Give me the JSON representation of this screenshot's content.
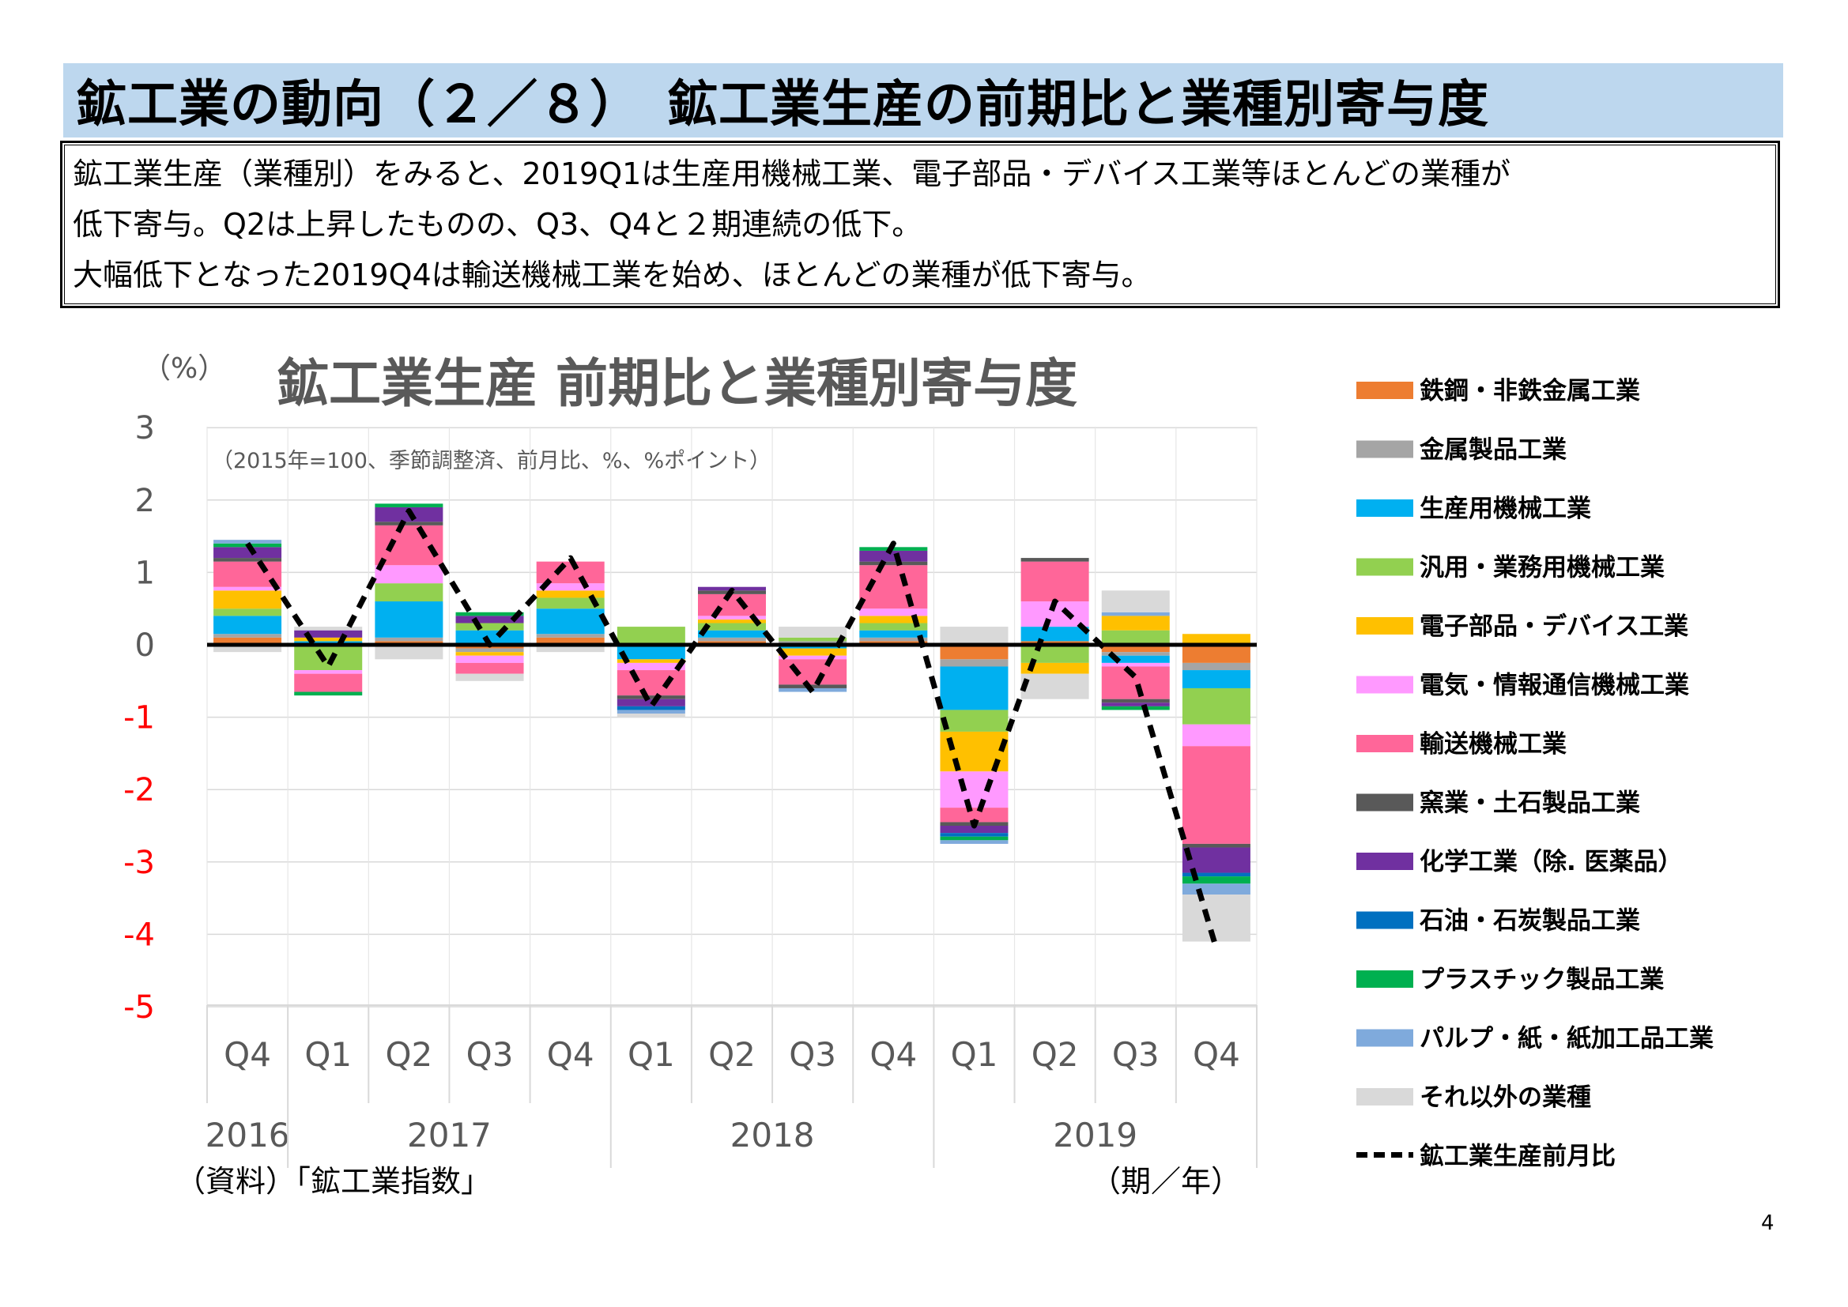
{
  "slide": {
    "title": "鉱工業の動向（２／８）　鉱工業生産の前期比と業種別寄与度",
    "summary_lines": [
      "鉱工業生産（業種別）をみると、2019Q1は生産用機械工業、電子部品・デバイス工業等ほとんどの業種が",
      "低下寄与。Q2は上昇したものの、Q3、Q4と２期連続の低下。",
      "大幅低下となった2019Q4は輸送機械工業を始め、ほとんどの業種が低下寄与。"
    ],
    "page_number": "4"
  },
  "chart_data": {
    "type": "bar",
    "stacked": true,
    "title": "鉱工業生産 前期比と業種別寄与度",
    "subtitle": "（2015年=100、季節調整済、前月比、%、%ポイント）",
    "y_unit": "（%）",
    "ylim": [
      -5,
      3
    ],
    "y_ticks": [
      3,
      2,
      1,
      0,
      -1,
      -2,
      -3,
      -4,
      -5
    ],
    "negative_tick_color": "#ff0000",
    "grid": true,
    "legend_position": "right",
    "source_note": "（資料）「鉱工業指数」",
    "x_axis_note": "（期／年）",
    "categories": [
      "Q4",
      "Q1",
      "Q2",
      "Q3",
      "Q4",
      "Q1",
      "Q2",
      "Q3",
      "Q4",
      "Q1",
      "Q2",
      "Q3",
      "Q4"
    ],
    "year_groups": [
      {
        "label": "2016",
        "count": 1
      },
      {
        "label": "2017",
        "count": 4
      },
      {
        "label": "2018",
        "count": 4
      },
      {
        "label": "2019",
        "count": 4
      }
    ],
    "series": [
      {
        "name": "鉄鋼・非鉄金属工業",
        "color": "#ed7d31",
        "values": [
          0.1,
          0.0,
          0.05,
          -0.05,
          0.1,
          0.0,
          0.05,
          0.0,
          0.05,
          -0.2,
          0.05,
          -0.1,
          -0.25
        ]
      },
      {
        "name": "金属製品工業",
        "color": "#a5a5a5",
        "values": [
          0.05,
          0.0,
          0.05,
          -0.05,
          0.05,
          0.0,
          0.05,
          0.05,
          0.05,
          -0.1,
          0.0,
          -0.05,
          -0.1
        ]
      },
      {
        "name": "生産用機械工業",
        "color": "#00b0f0",
        "values": [
          0.25,
          0.05,
          0.5,
          0.2,
          0.35,
          -0.2,
          0.1,
          -0.05,
          0.1,
          -0.6,
          0.2,
          -0.1,
          -0.25
        ]
      },
      {
        "name": "汎用・業務用機械工業",
        "color": "#92d050",
        "values": [
          0.1,
          -0.35,
          0.25,
          0.1,
          0.15,
          0.25,
          0.1,
          0.05,
          0.1,
          -0.3,
          -0.25,
          0.2,
          -0.5
        ]
      },
      {
        "name": "電子部品・デバイス工業",
        "color": "#ffc000",
        "values": [
          0.25,
          0.05,
          0.0,
          -0.05,
          0.1,
          -0.05,
          0.05,
          -0.1,
          0.1,
          -0.55,
          -0.15,
          0.2,
          0.15
        ]
      },
      {
        "name": "電気・情報通信機械工業",
        "color": "#ff99ff",
        "values": [
          0.05,
          -0.05,
          0.25,
          -0.1,
          0.1,
          -0.1,
          0.05,
          -0.05,
          0.1,
          -0.5,
          0.35,
          -0.05,
          -0.3
        ]
      },
      {
        "name": "輸送機械工業",
        "color": "#ff6699",
        "values": [
          0.35,
          -0.25,
          0.55,
          -0.15,
          0.3,
          -0.35,
          0.3,
          -0.35,
          0.6,
          -0.2,
          0.55,
          -0.45,
          -1.35
        ]
      },
      {
        "name": "窯業・土石製品工業",
        "color": "#595959",
        "values": [
          0.05,
          0.0,
          0.05,
          0.0,
          0.0,
          -0.05,
          0.05,
          -0.05,
          0.05,
          -0.05,
          0.05,
          -0.05,
          -0.05
        ]
      },
      {
        "name": "化学工業（除. 医薬品）",
        "color": "#7030a0",
        "values": [
          0.15,
          0.1,
          0.2,
          0.1,
          0.0,
          -0.1,
          0.05,
          0.0,
          0.15,
          -0.1,
          0.0,
          -0.05,
          -0.35
        ]
      },
      {
        "name": "石油・石炭製品工業",
        "color": "#0070c0",
        "values": [
          0.0,
          0.0,
          0.0,
          0.0,
          0.0,
          -0.05,
          0.0,
          0.0,
          0.0,
          -0.05,
          0.0,
          0.0,
          -0.05
        ]
      },
      {
        "name": "プラスチック製品工業",
        "color": "#00b050",
        "values": [
          0.05,
          -0.05,
          0.05,
          0.05,
          0.0,
          0.0,
          0.0,
          0.0,
          0.05,
          -0.05,
          0.0,
          -0.05,
          -0.1
        ]
      },
      {
        "name": "パルプ・紙・紙加工品工業",
        "color": "#7faadc",
        "values": [
          0.05,
          0.0,
          0.0,
          0.0,
          0.0,
          -0.05,
          0.0,
          -0.05,
          0.0,
          -0.05,
          0.0,
          0.05,
          -0.15
        ]
      },
      {
        "name": "それ以外の業種",
        "color": "#d9d9d9",
        "values": [
          -0.1,
          0.05,
          -0.2,
          -0.1,
          -0.1,
          -0.05,
          0.0,
          0.15,
          0.0,
          0.25,
          -0.35,
          0.3,
          -0.65
        ]
      }
    ],
    "line_series": {
      "name": "鉱工業生産前月比",
      "color": "#000000",
      "style": "dashed",
      "values": [
        1.4,
        -0.3,
        1.85,
        0.0,
        1.2,
        -0.85,
        0.75,
        -0.65,
        1.4,
        -2.5,
        0.6,
        -0.45,
        -4.2
      ]
    }
  }
}
